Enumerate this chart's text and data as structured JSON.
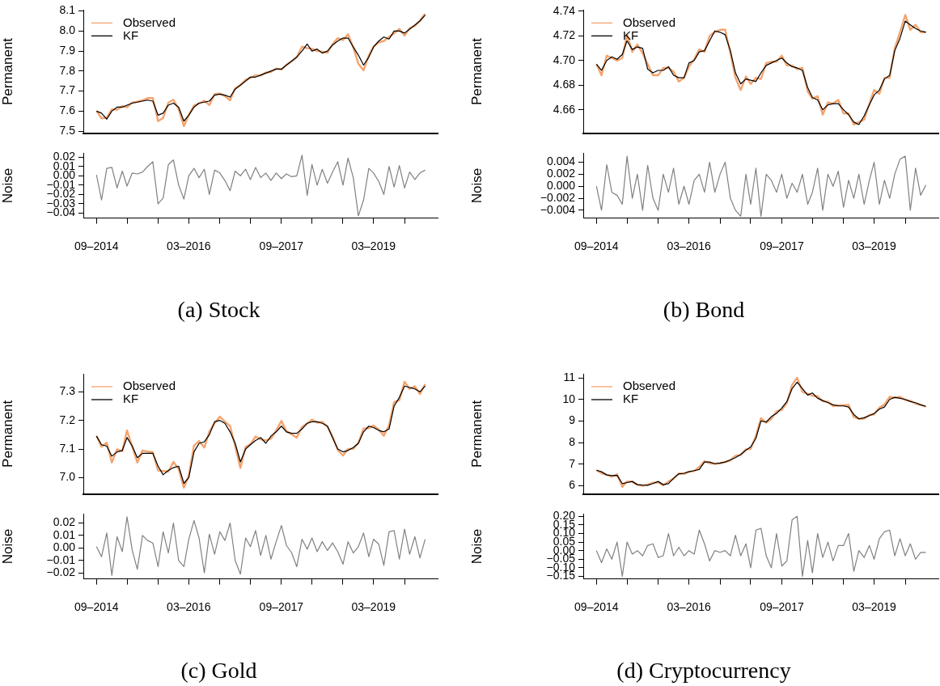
{
  "chart_data": [
    {
      "type": "line",
      "ylabel": "Permanent",
      "legend": "top left",
      "marker": "none",
      "tick_labels": "y",
      "xlim": [
        "2014-06-15",
        "2020-03-15"
      ],
      "ylim": [
        7.49,
        8.105
      ],
      "yticks": [
        {
          "value": 7.5,
          "label": "7.5"
        },
        {
          "value": 7.6,
          "label": "7.6"
        },
        {
          "value": 7.7,
          "label": "7.7"
        },
        {
          "value": 7.8,
          "label": "7.8"
        },
        {
          "value": 7.9,
          "label": "7.9"
        },
        {
          "value": 8.0,
          "label": "8.0"
        },
        {
          "value": 8.1,
          "label": "8.1"
        }
      ],
      "x": [
        "2014-09",
        "2014-10",
        "2014-11",
        "2014-12",
        "2015-01",
        "2015-02",
        "2015-03",
        "2015-04",
        "2015-05",
        "2015-06",
        "2015-07",
        "2015-08",
        "2015-09",
        "2015-10",
        "2015-11",
        "2015-12",
        "2016-01",
        "2016-02",
        "2016-03",
        "2016-04",
        "2016-05",
        "2016-06",
        "2016-07",
        "2016-08",
        "2016-09",
        "2016-10",
        "2016-11",
        "2016-12",
        "2017-01",
        "2017-02",
        "2017-03",
        "2017-04",
        "2017-05",
        "2017-06",
        "2017-07",
        "2017-08",
        "2017-09",
        "2017-10",
        "2017-11",
        "2017-12",
        "2018-01",
        "2018-02",
        "2018-03",
        "2018-04",
        "2018-05",
        "2018-06",
        "2018-07",
        "2018-08",
        "2018-09",
        "2018-10",
        "2018-11",
        "2018-12",
        "2019-01",
        "2019-02",
        "2019-03",
        "2019-04",
        "2019-05",
        "2019-06",
        "2019-07",
        "2019-08",
        "2019-09",
        "2019-10",
        "2019-11",
        "2019-12",
        "2020-01"
      ],
      "series": [
        {
          "name": "Observed",
          "color": "#f4a36c",
          "values": [
            7.601,
            7.564,
            7.568,
            7.609,
            7.607,
            7.625,
            7.619,
            7.643,
            7.647,
            7.654,
            7.665,
            7.665,
            7.55,
            7.566,
            7.642,
            7.657,
            7.61,
            7.525,
            7.58,
            7.628,
            7.638,
            7.652,
            7.63,
            7.686,
            7.688,
            7.675,
            7.654,
            7.715,
            7.73,
            7.757,
            7.766,
            7.779,
            7.778,
            7.793,
            7.795,
            7.813,
            7.807,
            7.832,
            7.849,
            7.87,
            7.922,
            7.914,
            7.912,
            7.9,
            7.897,
            7.892,
            7.934,
            7.965,
            7.955,
            7.984,
            7.918,
            7.837,
            7.804,
            7.878,
            7.923,
            7.944,
            7.95,
            7.97,
            7.988,
            8.011,
            7.977,
            8.014,
            8.026,
            8.053,
            8.086
          ]
        },
        {
          "name": "KF",
          "color": "#000000",
          "values": [
            7.6,
            7.59,
            7.56,
            7.6,
            7.62,
            7.62,
            7.63,
            7.64,
            7.645,
            7.65,
            7.655,
            7.65,
            7.58,
            7.59,
            7.63,
            7.64,
            7.62,
            7.55,
            7.58,
            7.62,
            7.64,
            7.645,
            7.65,
            7.68,
            7.685,
            7.68,
            7.67,
            7.71,
            7.73,
            7.75,
            7.77,
            7.77,
            7.78,
            7.79,
            7.8,
            7.81,
            7.81,
            7.83,
            7.85,
            7.87,
            7.9,
            7.935,
            7.9,
            7.91,
            7.89,
            7.9,
            7.93,
            7.95,
            7.965,
            7.965,
            7.92,
            7.88,
            7.83,
            7.87,
            7.92,
            7.95,
            7.97,
            7.96,
            8.0,
            8.0,
            7.99,
            8.01,
            8.03,
            8.05,
            8.08
          ]
        }
      ]
    },
    {
      "type": "line",
      "title": "(a) Stock",
      "ylabel": "Noise",
      "marker": "none",
      "xlim": [
        "2014-06-15",
        "2020-03-15"
      ],
      "ylim": [
        -0.0454,
        0.0242
      ],
      "yticks": [
        {
          "value": -0.04,
          "label": "−0.04"
        },
        {
          "value": -0.03,
          "label": "−0.03"
        },
        {
          "value": -0.02,
          "label": "−0.02"
        },
        {
          "value": -0.01,
          "label": "−0.01"
        },
        {
          "value": 0,
          "label": "0.00"
        },
        {
          "value": 0.01,
          "label": "0.01"
        },
        {
          "value": 0.02,
          "label": "0.02"
        }
      ],
      "xticks": [
        {
          "value": "2014-09",
          "label": "09–2014"
        },
        {
          "value": "2015-03",
          "label": null
        },
        {
          "value": "2015-09",
          "label": null
        },
        {
          "value": "2016-03",
          "label": "03–2016"
        },
        {
          "value": "2016-09",
          "label": null
        },
        {
          "value": "2017-03",
          "label": null
        },
        {
          "value": "2017-09",
          "label": "09–2017"
        },
        {
          "value": "2018-03",
          "label": null
        },
        {
          "value": "2018-09",
          "label": null
        },
        {
          "value": "2019-03",
          "label": "03–2019"
        },
        {
          "value": "2019-09",
          "label": null
        }
      ],
      "x": [
        "2014-09",
        "2014-10",
        "2014-11",
        "2014-12",
        "2015-01",
        "2015-02",
        "2015-03",
        "2015-04",
        "2015-05",
        "2015-06",
        "2015-07",
        "2015-08",
        "2015-09",
        "2015-10",
        "2015-11",
        "2015-12",
        "2016-01",
        "2016-02",
        "2016-03",
        "2016-04",
        "2016-05",
        "2016-06",
        "2016-07",
        "2016-08",
        "2016-09",
        "2016-10",
        "2016-11",
        "2016-12",
        "2017-01",
        "2017-02",
        "2017-03",
        "2017-04",
        "2017-05",
        "2017-06",
        "2017-07",
        "2017-08",
        "2017-09",
        "2017-10",
        "2017-11",
        "2017-12",
        "2018-01",
        "2018-02",
        "2018-03",
        "2018-04",
        "2018-05",
        "2018-06",
        "2018-07",
        "2018-08",
        "2018-09",
        "2018-10",
        "2018-11",
        "2018-12",
        "2019-01",
        "2019-02",
        "2019-03",
        "2019-04",
        "2019-05",
        "2019-06",
        "2019-07",
        "2019-08",
        "2019-09",
        "2019-10",
        "2019-11",
        "2019-12",
        "2020-01"
      ],
      "series": [
        {
          "color": "#808080",
          "values": [
            0.001,
            -0.026,
            0.008,
            0.009,
            -0.013,
            0.005,
            -0.011,
            0.003,
            0.002,
            0.004,
            0.01,
            0.015,
            -0.03,
            -0.024,
            0.012,
            0.017,
            -0.01,
            -0.025,
            0.0,
            0.008,
            -0.002,
            0.007,
            -0.02,
            0.006,
            0.003,
            -0.005,
            -0.016,
            0.005,
            0.0,
            0.007,
            -0.004,
            0.009,
            -0.002,
            0.003,
            -0.005,
            0.003,
            -0.003,
            0.002,
            -0.001,
            0.0,
            0.022,
            -0.021,
            0.012,
            -0.01,
            0.007,
            -0.008,
            0.004,
            0.015,
            -0.01,
            0.019,
            -0.002,
            -0.043,
            -0.026,
            0.008,
            0.003,
            -0.006,
            -0.02,
            0.01,
            -0.012,
            0.011,
            -0.013,
            0.004,
            -0.004,
            0.003,
            0.006
          ]
        }
      ]
    },
    {
      "type": "line",
      "ylabel": "Permanent",
      "legend": "top left",
      "marker": "none",
      "tick_labels": "y",
      "xlim": [
        "2014-06-15",
        "2020-03-15"
      ],
      "ylim": [
        4.641,
        4.741
      ],
      "yticks": [
        {
          "value": 4.66,
          "label": "4.66"
        },
        {
          "value": 4.68,
          "label": "4.68"
        },
        {
          "value": 4.7,
          "label": "4.70"
        },
        {
          "value": 4.72,
          "label": "4.72"
        },
        {
          "value": 4.74,
          "label": "4.74"
        }
      ],
      "x": [
        "2014-09",
        "2014-10",
        "2014-11",
        "2014-12",
        "2015-01",
        "2015-02",
        "2015-03",
        "2015-04",
        "2015-05",
        "2015-06",
        "2015-07",
        "2015-08",
        "2015-09",
        "2015-10",
        "2015-11",
        "2015-12",
        "2016-01",
        "2016-02",
        "2016-03",
        "2016-04",
        "2016-05",
        "2016-06",
        "2016-07",
        "2016-08",
        "2016-09",
        "2016-10",
        "2016-11",
        "2016-12",
        "2017-01",
        "2017-02",
        "2017-03",
        "2017-04",
        "2017-05",
        "2017-06",
        "2017-07",
        "2017-08",
        "2017-09",
        "2017-10",
        "2017-11",
        "2017-12",
        "2018-01",
        "2018-02",
        "2018-03",
        "2018-04",
        "2018-05",
        "2018-06",
        "2018-07",
        "2018-08",
        "2018-09",
        "2018-10",
        "2018-11",
        "2018-12",
        "2019-01",
        "2019-02",
        "2019-03",
        "2019-04",
        "2019-05",
        "2019-06",
        "2019-07",
        "2019-08",
        "2019-09",
        "2019-10",
        "2019-11",
        "2019-12",
        "2020-01"
      ],
      "series": [
        {
          "name": "Observed",
          "color": "#f4a36c",
          "values": [
            4.697,
            4.688,
            4.704,
            4.702,
            4.7,
            4.702,
            4.721,
            4.707,
            4.713,
            4.706,
            4.697,
            4.688,
            4.688,
            4.694,
            4.694,
            4.691,
            4.683,
            4.686,
            4.695,
            4.701,
            4.709,
            4.707,
            4.72,
            4.723,
            4.725,
            4.725,
            4.706,
            4.686,
            4.676,
            4.687,
            4.681,
            4.686,
            4.685,
            4.698,
            4.699,
            4.699,
            4.704,
            4.696,
            4.696,
            4.693,
            4.694,
            4.675,
            4.669,
            4.671,
            4.656,
            4.666,
            4.665,
            4.668,
            4.657,
            4.657,
            4.648,
            4.65,
            4.652,
            4.665,
            4.676,
            4.673,
            4.686,
            4.686,
            4.71,
            4.723,
            4.737,
            4.725,
            4.729,
            4.723,
            4.723
          ]
        },
        {
          "name": "KF",
          "color": "#000000",
          "values": [
            4.697,
            4.692,
            4.7,
            4.703,
            4.701,
            4.705,
            4.716,
            4.709,
            4.711,
            4.71,
            4.693,
            4.69,
            4.692,
            4.692,
            4.695,
            4.688,
            4.686,
            4.686,
            4.698,
            4.7,
            4.707,
            4.708,
            4.716,
            4.724,
            4.723,
            4.721,
            4.708,
            4.69,
            4.681,
            4.685,
            4.684,
            4.683,
            4.69,
            4.696,
            4.698,
            4.7,
            4.702,
            4.698,
            4.695,
            4.694,
            4.692,
            4.678,
            4.67,
            4.668,
            4.66,
            4.664,
            4.665,
            4.665,
            4.66,
            4.656,
            4.65,
            4.648,
            4.655,
            4.664,
            4.672,
            4.676,
            4.685,
            4.688,
            4.708,
            4.718,
            4.732,
            4.729,
            4.726,
            4.724,
            4.723
          ]
        }
      ]
    },
    {
      "type": "line",
      "title": "(b) Bond",
      "ylabel": "Noise",
      "marker": "none",
      "xlim": [
        "2014-06-15",
        "2020-03-15"
      ],
      "ylim": [
        -0.0053,
        0.0055
      ],
      "yticks": [
        {
          "value": -0.004,
          "label": "−0.004"
        },
        {
          "value": -0.002,
          "label": "−0.002"
        },
        {
          "value": 0,
          "label": "0.000"
        },
        {
          "value": 0.002,
          "label": "0.002"
        },
        {
          "value": 0.004,
          "label": "0.004"
        }
      ],
      "xticks": [
        {
          "value": "2014-09",
          "label": "09–2014"
        },
        {
          "value": "2015-03",
          "label": null
        },
        {
          "value": "2015-09",
          "label": null
        },
        {
          "value": "2016-03",
          "label": "03–2016"
        },
        {
          "value": "2016-09",
          "label": null
        },
        {
          "value": "2017-03",
          "label": null
        },
        {
          "value": "2017-09",
          "label": "09–2017"
        },
        {
          "value": "2018-03",
          "label": null
        },
        {
          "value": "2018-09",
          "label": null
        },
        {
          "value": "2019-03",
          "label": "03–2019"
        },
        {
          "value": "2019-09",
          "label": null
        }
      ],
      "x": [
        "2014-09",
        "2014-10",
        "2014-11",
        "2014-12",
        "2015-01",
        "2015-02",
        "2015-03",
        "2015-04",
        "2015-05",
        "2015-06",
        "2015-07",
        "2015-08",
        "2015-09",
        "2015-10",
        "2015-11",
        "2015-12",
        "2016-01",
        "2016-02",
        "2016-03",
        "2016-04",
        "2016-05",
        "2016-06",
        "2016-07",
        "2016-08",
        "2016-09",
        "2016-10",
        "2016-11",
        "2016-12",
        "2017-01",
        "2017-02",
        "2017-03",
        "2017-04",
        "2017-05",
        "2017-06",
        "2017-07",
        "2017-08",
        "2017-09",
        "2017-10",
        "2017-11",
        "2017-12",
        "2018-01",
        "2018-02",
        "2018-03",
        "2018-04",
        "2018-05",
        "2018-06",
        "2018-07",
        "2018-08",
        "2018-09",
        "2018-10",
        "2018-11",
        "2018-12",
        "2019-01",
        "2019-02",
        "2019-03",
        "2019-04",
        "2019-05",
        "2019-06",
        "2019-07",
        "2019-08",
        "2019-09",
        "2019-10",
        "2019-11",
        "2019-12",
        "2020-01"
      ],
      "series": [
        {
          "color": "#808080",
          "values": [
            0.0,
            -0.004,
            0.0036,
            -0.001,
            -0.0015,
            -0.003,
            0.005,
            -0.002,
            0.002,
            -0.004,
            0.0035,
            -0.002,
            -0.004,
            0.002,
            -0.001,
            0.003,
            -0.003,
            0.0,
            -0.003,
            0.001,
            0.002,
            -0.001,
            0.004,
            -0.001,
            0.002,
            0.004,
            -0.002,
            -0.004,
            -0.005,
            0.002,
            -0.003,
            0.003,
            -0.005,
            0.002,
            0.001,
            -0.001,
            0.002,
            -0.002,
            0.0005,
            -0.001,
            0.002,
            -0.003,
            -0.001,
            0.003,
            -0.004,
            0.002,
            0.0,
            0.0025,
            -0.0035,
            0.001,
            -0.002,
            0.002,
            -0.003,
            0.001,
            0.004,
            -0.003,
            0.001,
            -0.002,
            0.002,
            0.0045,
            0.005,
            -0.004,
            0.003,
            -0.0015,
            0.0002
          ]
        }
      ]
    },
    {
      "type": "line",
      "ylabel": "Permanent",
      "legend": "top left",
      "marker": "none",
      "tick_labels": "y",
      "xlim": [
        "2014-06-15",
        "2020-03-15"
      ],
      "ylim": [
        6.943,
        7.363
      ],
      "yticks": [
        {
          "value": 7.0,
          "label": "7.0"
        },
        {
          "value": 7.1,
          "label": "7.1"
        },
        {
          "value": 7.2,
          "label": "7.2"
        },
        {
          "value": 7.3,
          "label": "7.3"
        }
      ],
      "x": [
        "2014-09",
        "2014-10",
        "2014-11",
        "2014-12",
        "2015-01",
        "2015-02",
        "2015-03",
        "2015-04",
        "2015-05",
        "2015-06",
        "2015-07",
        "2015-08",
        "2015-09",
        "2015-10",
        "2015-11",
        "2015-12",
        "2016-01",
        "2016-02",
        "2016-03",
        "2016-04",
        "2016-05",
        "2016-06",
        "2016-07",
        "2016-08",
        "2016-09",
        "2016-10",
        "2016-11",
        "2016-12",
        "2017-01",
        "2017-02",
        "2017-03",
        "2017-04",
        "2017-05",
        "2017-06",
        "2017-07",
        "2017-08",
        "2017-09",
        "2017-10",
        "2017-11",
        "2017-12",
        "2018-01",
        "2018-02",
        "2018-03",
        "2018-04",
        "2018-05",
        "2018-06",
        "2018-07",
        "2018-08",
        "2018-09",
        "2018-10",
        "2018-11",
        "2018-12",
        "2019-01",
        "2019-02",
        "2019-03",
        "2019-04",
        "2019-05",
        "2019-06",
        "2019-07",
        "2019-08",
        "2019-09",
        "2019-10",
        "2019-11",
        "2019-12",
        "2020-01"
      ],
      "series": [
        {
          "name": "Observed",
          "color": "#f4a36c",
          "values": [
            7.146,
            7.108,
            7.122,
            7.053,
            7.099,
            7.092,
            7.165,
            7.108,
            7.053,
            7.095,
            7.091,
            7.089,
            7.025,
            7.023,
            7.021,
            7.055,
            7.03,
            6.965,
            7.007,
            7.112,
            7.128,
            7.105,
            7.161,
            7.19,
            7.213,
            7.196,
            7.18,
            7.11,
            7.034,
            7.108,
            7.116,
            7.144,
            7.134,
            7.13,
            7.136,
            7.165,
            7.198,
            7.162,
            7.151,
            7.14,
            7.177,
            7.189,
            7.203,
            7.192,
            7.195,
            7.178,
            7.144,
            7.097,
            7.077,
            7.1,
            7.101,
            7.121,
            7.172,
            7.173,
            7.182,
            7.168,
            7.146,
            7.183,
            7.264,
            7.271,
            7.335,
            7.31,
            7.319,
            7.292,
            7.327
          ]
        },
        {
          "name": "KF",
          "color": "#000000",
          "values": [
            7.145,
            7.115,
            7.11,
            7.075,
            7.09,
            7.095,
            7.14,
            7.11,
            7.07,
            7.085,
            7.085,
            7.085,
            7.04,
            7.01,
            7.025,
            7.035,
            7.04,
            6.98,
            7.0,
            7.09,
            7.12,
            7.125,
            7.15,
            7.195,
            7.2,
            7.19,
            7.16,
            7.12,
            7.055,
            7.1,
            7.115,
            7.13,
            7.14,
            7.12,
            7.145,
            7.16,
            7.18,
            7.16,
            7.155,
            7.155,
            7.17,
            7.19,
            7.195,
            7.195,
            7.19,
            7.18,
            7.14,
            7.1,
            7.09,
            7.095,
            7.105,
            7.12,
            7.16,
            7.18,
            7.175,
            7.165,
            7.16,
            7.17,
            7.25,
            7.28,
            7.32,
            7.315,
            7.31,
            7.3,
            7.32
          ]
        }
      ]
    },
    {
      "type": "line",
      "title": "(c) Gold",
      "ylabel": "Noise",
      "marker": "none",
      "xlim": [
        "2014-06-15",
        "2020-03-15"
      ],
      "ylim": [
        -0.0248,
        0.0272
      ],
      "yticks": [
        {
          "value": -0.02,
          "label": "−0.02"
        },
        {
          "value": -0.01,
          "label": "−0.01"
        },
        {
          "value": 0,
          "label": "0.00"
        },
        {
          "value": 0.01,
          "label": "0.01"
        },
        {
          "value": 0.02,
          "label": "0.02"
        }
      ],
      "xticks": [
        {
          "value": "2014-09",
          "label": "09–2014"
        },
        {
          "value": "2015-03",
          "label": null
        },
        {
          "value": "2015-09",
          "label": null
        },
        {
          "value": "2016-03",
          "label": "03–2016"
        },
        {
          "value": "2016-09",
          "label": null
        },
        {
          "value": "2017-03",
          "label": null
        },
        {
          "value": "2017-09",
          "label": "09–2017"
        },
        {
          "value": "2018-03",
          "label": null
        },
        {
          "value": "2018-09",
          "label": null
        },
        {
          "value": "2019-03",
          "label": "03–2019"
        },
        {
          "value": "2019-09",
          "label": null
        }
      ],
      "x": [
        "2014-09",
        "2014-10",
        "2014-11",
        "2014-12",
        "2015-01",
        "2015-02",
        "2015-03",
        "2015-04",
        "2015-05",
        "2015-06",
        "2015-07",
        "2015-08",
        "2015-09",
        "2015-10",
        "2015-11",
        "2015-12",
        "2016-01",
        "2016-02",
        "2016-03",
        "2016-04",
        "2016-05",
        "2016-06",
        "2016-07",
        "2016-08",
        "2016-09",
        "2016-10",
        "2016-11",
        "2016-12",
        "2017-01",
        "2017-02",
        "2017-03",
        "2017-04",
        "2017-05",
        "2017-06",
        "2017-07",
        "2017-08",
        "2017-09",
        "2017-10",
        "2017-11",
        "2017-12",
        "2018-01",
        "2018-02",
        "2018-03",
        "2018-04",
        "2018-05",
        "2018-06",
        "2018-07",
        "2018-08",
        "2018-09",
        "2018-10",
        "2018-11",
        "2018-12",
        "2019-01",
        "2019-02",
        "2019-03",
        "2019-04",
        "2019-05",
        "2019-06",
        "2019-07",
        "2019-08",
        "2019-09",
        "2019-10",
        "2019-11",
        "2019-12",
        "2020-01"
      ],
      "series": [
        {
          "color": "#808080",
          "values": [
            0.001,
            -0.007,
            0.012,
            -0.022,
            0.009,
            -0.003,
            0.025,
            -0.002,
            -0.017,
            0.01,
            0.006,
            0.004,
            -0.015,
            0.013,
            -0.004,
            0.02,
            -0.01,
            -0.015,
            0.007,
            0.022,
            0.008,
            -0.02,
            0.011,
            -0.005,
            0.013,
            0.006,
            0.02,
            -0.01,
            -0.021,
            0.008,
            0.001,
            0.014,
            -0.006,
            0.01,
            -0.009,
            0.005,
            0.018,
            0.002,
            -0.004,
            -0.015,
            0.007,
            -0.001,
            0.008,
            -0.003,
            0.005,
            -0.002,
            0.004,
            -0.003,
            -0.013,
            0.005,
            -0.004,
            0.001,
            0.012,
            -0.007,
            0.007,
            0.003,
            -0.014,
            0.013,
            0.014,
            -0.009,
            0.015,
            -0.005,
            0.009,
            -0.008,
            0.007
          ]
        }
      ]
    },
    {
      "type": "line",
      "ylabel": "Permanent",
      "legend": "top left",
      "marker": "none",
      "tick_labels": "y",
      "xlim": [
        "2014-06-15",
        "2020-03-15"
      ],
      "ylim": [
        5.62,
        11.19
      ],
      "yticks": [
        6,
        7,
        8,
        9,
        10,
        11
      ],
      "x": [
        "2014-09",
        "2014-10",
        "2014-11",
        "2014-12",
        "2015-01",
        "2015-02",
        "2015-03",
        "2015-04",
        "2015-05",
        "2015-06",
        "2015-07",
        "2015-08",
        "2015-09",
        "2015-10",
        "2015-11",
        "2015-12",
        "2016-01",
        "2016-02",
        "2016-03",
        "2016-04",
        "2016-05",
        "2016-06",
        "2016-07",
        "2016-08",
        "2016-09",
        "2016-10",
        "2016-11",
        "2016-12",
        "2017-01",
        "2017-02",
        "2017-03",
        "2017-04",
        "2017-05",
        "2017-06",
        "2017-07",
        "2017-08",
        "2017-09",
        "2017-10",
        "2017-11",
        "2017-12",
        "2018-01",
        "2018-02",
        "2018-03",
        "2018-04",
        "2018-05",
        "2018-06",
        "2018-07",
        "2018-08",
        "2018-09",
        "2018-10",
        "2018-11",
        "2018-12",
        "2019-01",
        "2019-02",
        "2019-03",
        "2019-04",
        "2019-05",
        "2019-06",
        "2019-07",
        "2019-08",
        "2019-09",
        "2019-10",
        "2019-11",
        "2019-12",
        "2020-01"
      ],
      "series": [
        {
          "name": "Observed",
          "color": "#f4a36c",
          "values": [
            6.72,
            6.58,
            6.51,
            6.42,
            6.53,
            5.95,
            6.2,
            6.18,
            6.05,
            6.0,
            6.05,
            6.14,
            6.16,
            6.02,
            6.2,
            6.32,
            6.57,
            6.55,
            6.65,
            6.68,
            6.87,
            7.14,
            7.04,
            7.02,
            7.04,
            7.1,
            7.17,
            7.39,
            7.42,
            7.69,
            7.7,
            8.32,
            9.13,
            8.92,
            9.1,
            9.45,
            9.51,
            9.84,
            10.68,
            11.0,
            10.35,
            10.26,
            10.17,
            10.15,
            9.91,
            9.9,
            9.69,
            9.73,
            9.73,
            9.75,
            9.18,
            9.1,
            9.11,
            9.28,
            9.3,
            9.62,
            9.76,
            10.12,
            10.07,
            10.12,
            9.97,
            9.94,
            9.8,
            9.74,
            9.67
          ]
        },
        {
          "name": "KF",
          "color": "#000000",
          "values": [
            6.72,
            6.65,
            6.5,
            6.47,
            6.48,
            6.1,
            6.15,
            6.2,
            6.05,
            6.03,
            6.02,
            6.1,
            6.2,
            6.05,
            6.1,
            6.35,
            6.55,
            6.58,
            6.65,
            6.7,
            6.75,
            7.1,
            7.1,
            7.02,
            7.05,
            7.1,
            7.2,
            7.3,
            7.45,
            7.65,
            7.8,
            8.2,
            9.0,
            8.95,
            9.2,
            9.35,
            9.6,
            9.9,
            10.5,
            10.8,
            10.5,
            10.2,
            10.3,
            10.05,
            9.95,
            9.85,
            9.75,
            9.7,
            9.7,
            9.65,
            9.3,
            9.1,
            9.15,
            9.25,
            9.35,
            9.55,
            9.65,
            10.0,
            10.1,
            10.05,
            10.0,
            9.9,
            9.85,
            9.75,
            9.68
          ]
        }
      ]
    },
    {
      "type": "line",
      "title": "(d) Cryptocurrency",
      "ylabel": "Noise",
      "marker": "none",
      "xlim": [
        "2014-06-15",
        "2020-03-15"
      ],
      "ylim": [
        -0.165,
        0.214
      ],
      "yticks": [
        {
          "value": -0.15,
          "label": "−0.15"
        },
        {
          "value": -0.1,
          "label": "−0.10"
        },
        {
          "value": -0.05,
          "label": "−0.05"
        },
        {
          "value": 0,
          "label": "0.00"
        },
        {
          "value": 0.05,
          "label": "0.05"
        },
        {
          "value": 0.1,
          "label": "0.10"
        },
        {
          "value": 0.15,
          "label": "0.15"
        },
        {
          "value": 0.2,
          "label": "0.20"
        }
      ],
      "xticks": [
        {
          "value": "2014-09",
          "label": "09–2014"
        },
        {
          "value": "2015-03",
          "label": null
        },
        {
          "value": "2015-09",
          "label": null
        },
        {
          "value": "2016-03",
          "label": "03–2016"
        },
        {
          "value": "2016-09",
          "label": null
        },
        {
          "value": "2017-03",
          "label": null
        },
        {
          "value": "2017-09",
          "label": "09–2017"
        },
        {
          "value": "2018-03",
          "label": null
        },
        {
          "value": "2018-09",
          "label": null
        },
        {
          "value": "2019-03",
          "label": "03–2019"
        },
        {
          "value": "2019-09",
          "label": null
        }
      ],
      "x": [
        "2014-09",
        "2014-10",
        "2014-11",
        "2014-12",
        "2015-01",
        "2015-02",
        "2015-03",
        "2015-04",
        "2015-05",
        "2015-06",
        "2015-07",
        "2015-08",
        "2015-09",
        "2015-10",
        "2015-11",
        "2015-12",
        "2016-01",
        "2016-02",
        "2016-03",
        "2016-04",
        "2016-05",
        "2016-06",
        "2016-07",
        "2016-08",
        "2016-09",
        "2016-10",
        "2016-11",
        "2016-12",
        "2017-01",
        "2017-02",
        "2017-03",
        "2017-04",
        "2017-05",
        "2017-06",
        "2017-07",
        "2017-08",
        "2017-09",
        "2017-10",
        "2017-11",
        "2017-12",
        "2018-01",
        "2018-02",
        "2018-03",
        "2018-04",
        "2018-05",
        "2018-06",
        "2018-07",
        "2018-08",
        "2018-09",
        "2018-10",
        "2018-11",
        "2018-12",
        "2019-01",
        "2019-02",
        "2019-03",
        "2019-04",
        "2019-05",
        "2019-06",
        "2019-07",
        "2019-08",
        "2019-09",
        "2019-10",
        "2019-11",
        "2019-12",
        "2020-01"
      ],
      "series": [
        {
          "color": "#808080",
          "values": [
            0.0,
            -0.07,
            0.01,
            -0.05,
            0.05,
            -0.15,
            0.05,
            -0.02,
            0.0,
            -0.03,
            0.03,
            0.04,
            -0.04,
            -0.03,
            0.1,
            -0.03,
            0.02,
            -0.03,
            0.0,
            -0.02,
            0.12,
            0.04,
            -0.06,
            0.0,
            -0.01,
            0.0,
            -0.03,
            0.09,
            -0.03,
            0.04,
            -0.1,
            0.12,
            0.13,
            -0.03,
            -0.1,
            0.1,
            -0.09,
            -0.06,
            0.18,
            0.2,
            -0.15,
            0.06,
            -0.13,
            0.1,
            -0.04,
            0.05,
            -0.06,
            0.03,
            0.03,
            0.1,
            -0.12,
            0.0,
            -0.04,
            0.03,
            -0.05,
            0.07,
            0.11,
            0.12,
            -0.03,
            0.07,
            -0.03,
            0.04,
            -0.05,
            -0.01,
            -0.01
          ]
        }
      ]
    }
  ]
}
